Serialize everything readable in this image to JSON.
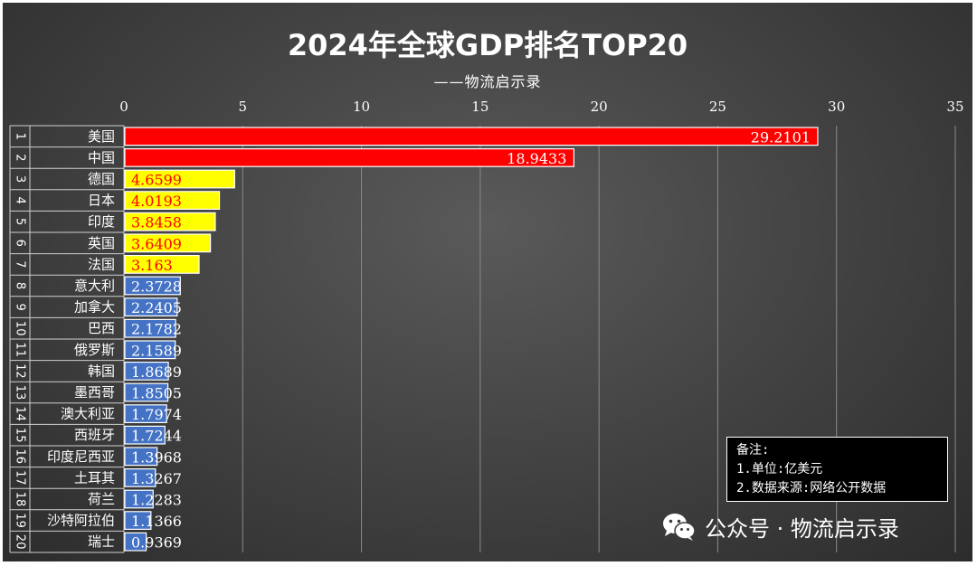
{
  "header": {
    "title": "2024年全球GDP排名TOP20",
    "subtitle": "——物流启示录"
  },
  "notes": {
    "heading": "备注:",
    "line1": "1.单位:亿美元",
    "line2": "2.数据来源:网络公开数据"
  },
  "watermark": {
    "icon": "wechat-icon",
    "text": "公众号 · 物流启示录"
  },
  "colors": {
    "red": "#ff0000",
    "yellow": "#ffff00",
    "blue": "#4472c4",
    "label_on_red": "#ffffff",
    "label_on_yellow": "#ff0000",
    "label_on_blue": "#ffffff"
  },
  "chart_data": {
    "type": "bar",
    "orientation": "horizontal",
    "title": "2024年全球GDP排名TOP20",
    "subtitle": "——物流启示录",
    "xlim": [
      0,
      35
    ],
    "x_ticks": [
      0,
      5,
      10,
      15,
      20,
      25,
      30,
      35
    ],
    "grid": true,
    "rank": [
      "1",
      "2",
      "3",
      "4",
      "5",
      "6",
      "7",
      "8",
      "9",
      "10",
      "11",
      "12",
      "13",
      "14",
      "15",
      "16",
      "17",
      "18",
      "19",
      "20"
    ],
    "categories": [
      "美国",
      "中国",
      "德国",
      "日本",
      "印度",
      "英国",
      "法国",
      "意大利",
      "加拿大",
      "巴西",
      "俄罗斯",
      "韩国",
      "墨西哥",
      "澳大利亚",
      "西班牙",
      "印度尼西亚",
      "土耳其",
      "荷兰",
      "沙特阿拉伯",
      "瑞士"
    ],
    "values": [
      29.2101,
      18.9433,
      4.6599,
      4.0193,
      3.8458,
      3.6409,
      3.163,
      2.3728,
      2.2405,
      2.1782,
      2.1589,
      1.8689,
      1.8505,
      1.7974,
      1.7244,
      1.3968,
      1.3267,
      1.2283,
      1.1366,
      0.9369
    ],
    "value_labels": [
      "29.2101",
      "18.9433",
      "4.6599",
      "4.0193",
      "3.8458",
      "3.6409",
      "3.163",
      "2.3728",
      "2.2405",
      "2.1782",
      "2.1589",
      "1.8689",
      "1.8505",
      "1.7974",
      "1.7244",
      "1.3968",
      "1.3267",
      "1.2283",
      "1.1366",
      "0.9369"
    ],
    "color_groups": [
      "red",
      "red",
      "yellow",
      "yellow",
      "yellow",
      "yellow",
      "yellow",
      "blue",
      "blue",
      "blue",
      "blue",
      "blue",
      "blue",
      "blue",
      "blue",
      "blue",
      "blue",
      "blue",
      "blue",
      "blue"
    ]
  }
}
